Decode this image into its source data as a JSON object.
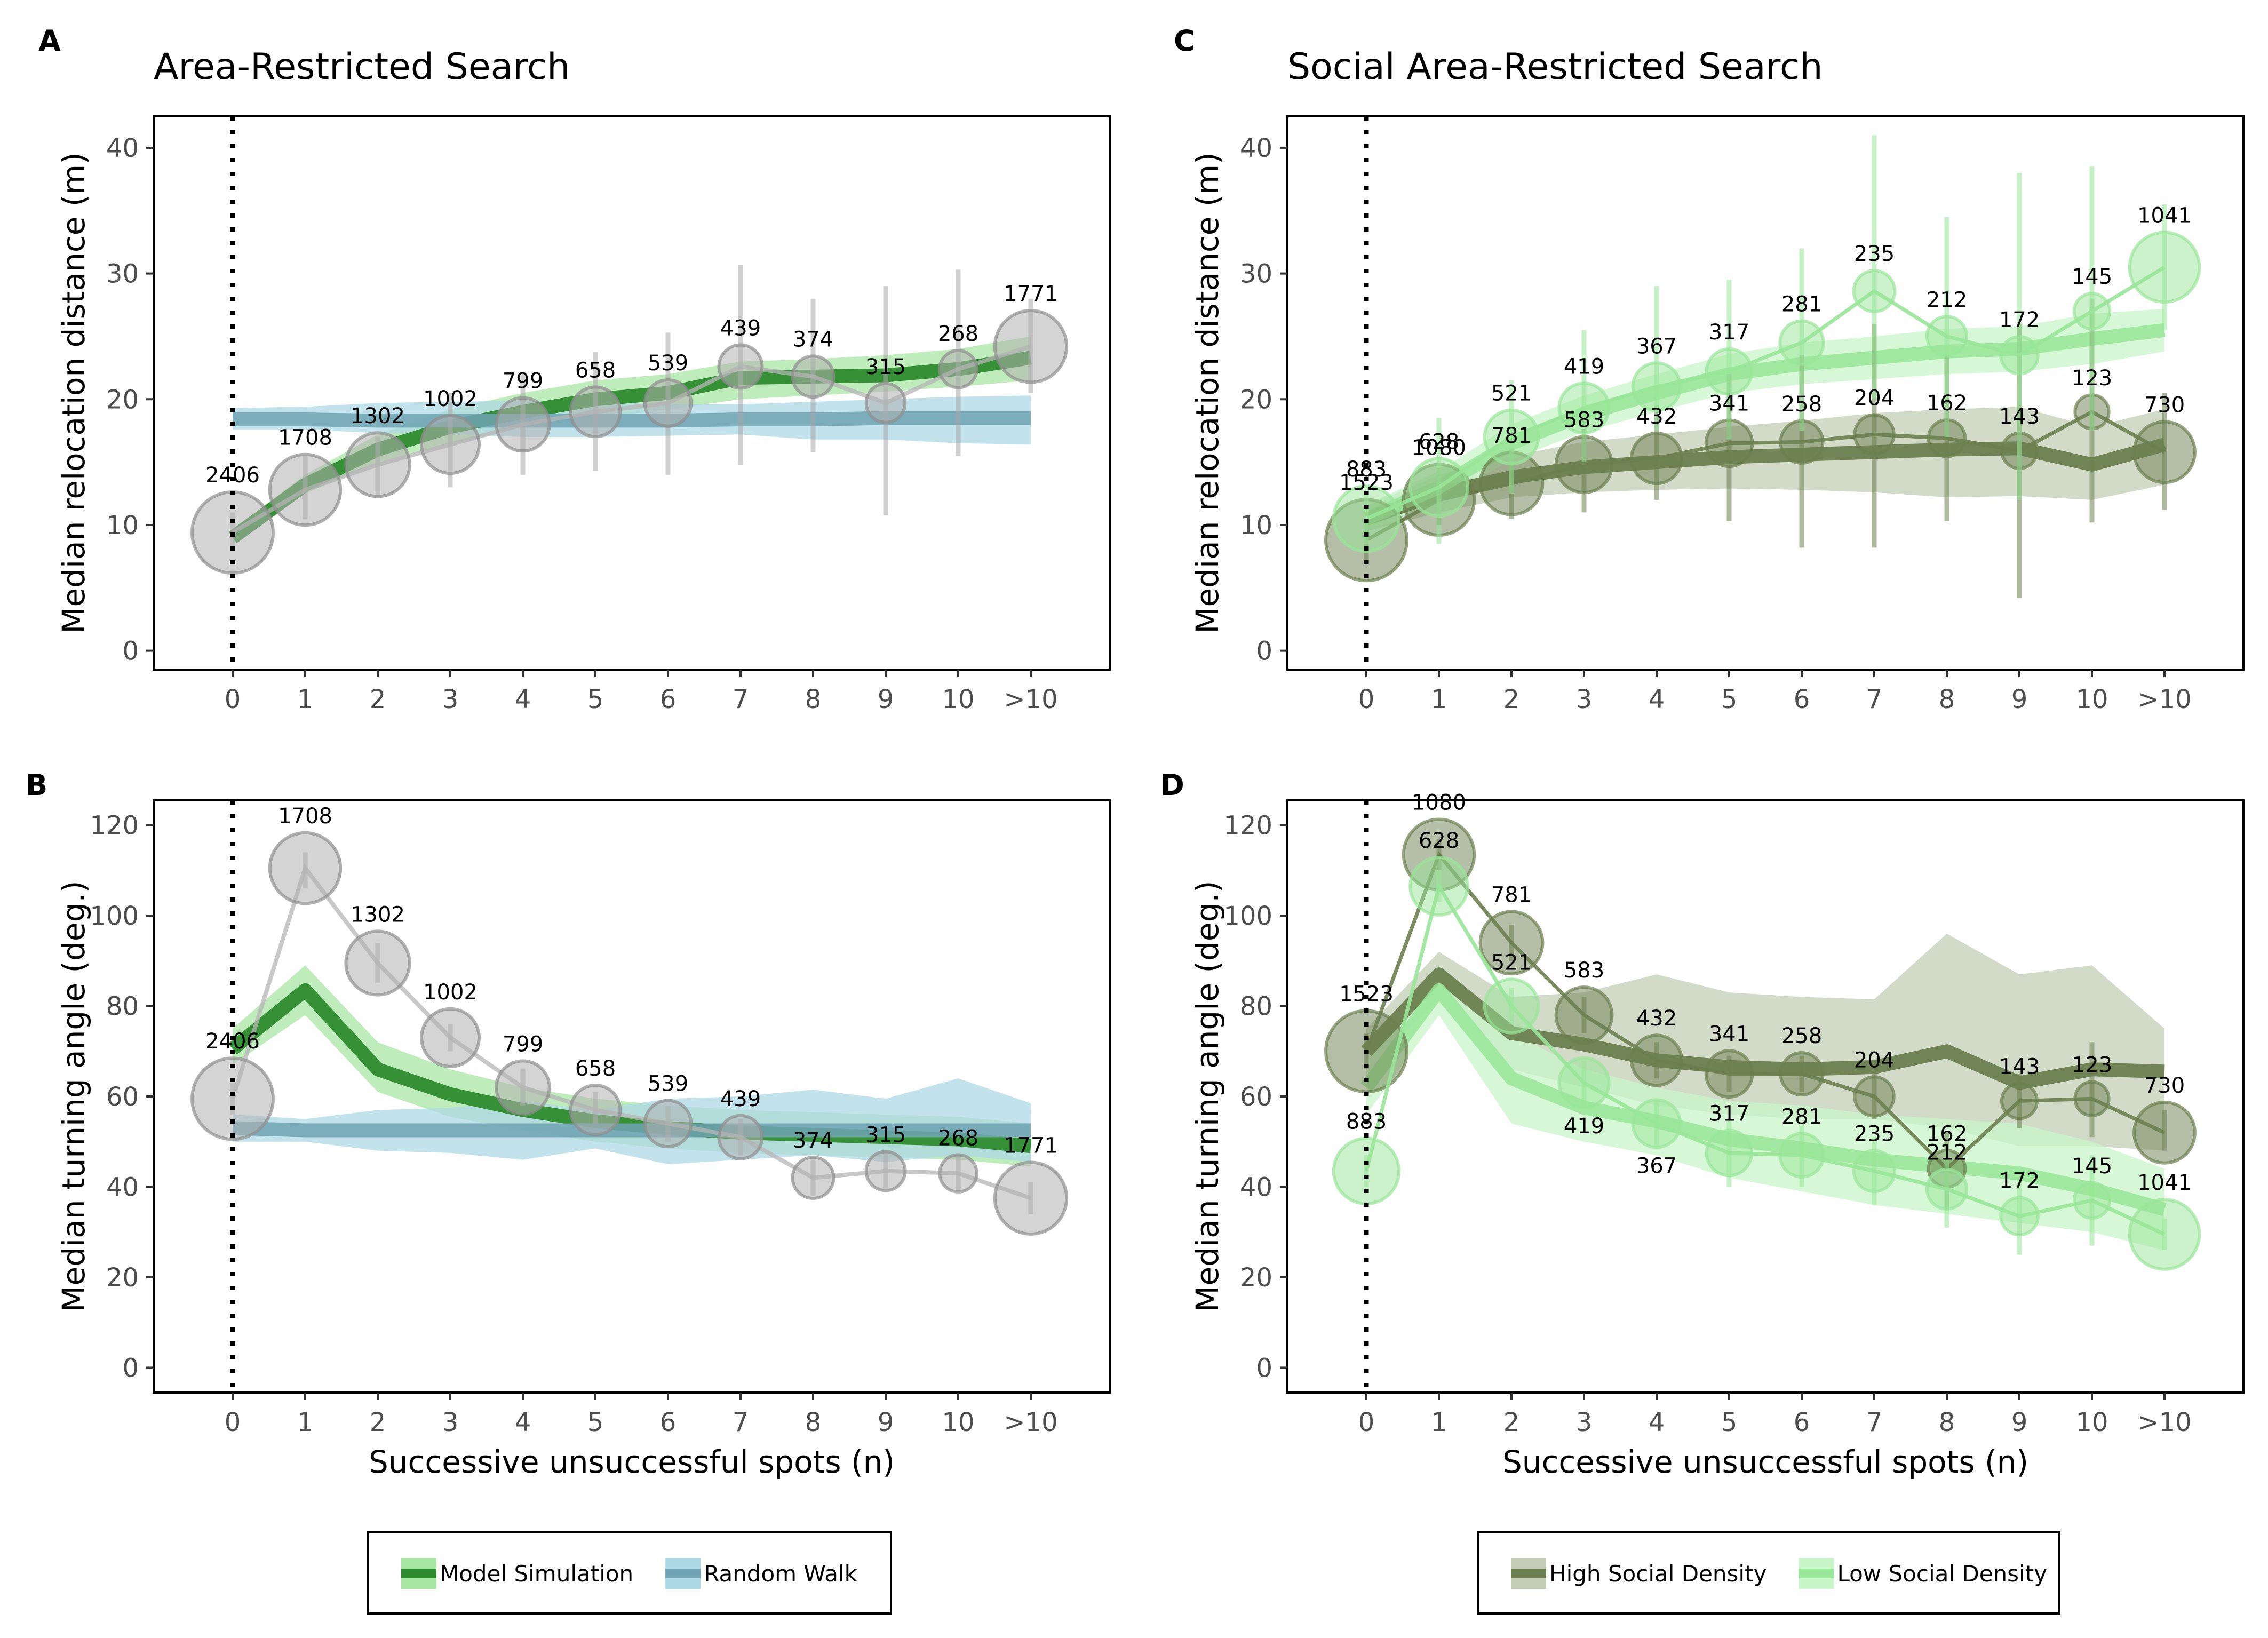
{
  "chart_data": [
    {
      "panel": "A",
      "title": "Area-Restricted Search",
      "type": "line",
      "ylabel": "Median relocation distance (m)",
      "xlabel": "",
      "ylim": [
        -1.5,
        42.5
      ],
      "yticks": [
        0,
        10,
        20,
        30,
        40
      ],
      "categories": [
        "0",
        "1",
        "2",
        "3",
        "4",
        "5",
        "6",
        "7",
        "8",
        "9",
        "10",
        ">10"
      ],
      "observed": {
        "values": [
          9.4,
          12.8,
          14.8,
          16.4,
          18.0,
          19.0,
          19.7,
          22.6,
          21.8,
          19.7,
          22.4,
          24.2
        ],
        "low": [
          8.0,
          10.5,
          12.2,
          13.0,
          14.0,
          14.3,
          14.0,
          14.8,
          15.8,
          10.8,
          15.5,
          20.5
        ],
        "high": [
          11.0,
          15.5,
          17.0,
          20.5,
          22.0,
          23.8,
          25.3,
          30.7,
          28.0,
          29.0,
          30.3,
          28.0
        ],
        "counts": [
          "2406",
          "1708",
          "1302",
          "1002",
          "799",
          "658",
          "539",
          "439",
          "374",
          "315",
          "268",
          "1771"
        ]
      },
      "series": [
        {
          "name": "Model Simulation",
          "values": [
            9.0,
            13.2,
            16.0,
            17.8,
            19.0,
            20.0,
            20.5,
            21.7,
            21.8,
            21.9,
            22.4,
            23.3
          ],
          "low": [
            8.5,
            12.5,
            15.0,
            16.5,
            17.8,
            18.5,
            19.2,
            20.0,
            20.3,
            20.6,
            21.0,
            21.5
          ],
          "high": [
            9.6,
            14.0,
            17.2,
            19.2,
            20.5,
            21.5,
            22.0,
            23.0,
            23.2,
            23.5,
            24.0,
            25.0
          ],
          "color": "#2e8b2e",
          "band": "#a8e6a3"
        },
        {
          "name": "Random Walk",
          "values": [
            18.4,
            18.4,
            18.3,
            18.3,
            18.3,
            18.3,
            18.3,
            18.4,
            18.4,
            18.5,
            18.5,
            18.5
          ],
          "low": [
            17.6,
            17.6,
            17.3,
            17.2,
            17.0,
            17.0,
            17.1,
            17.2,
            16.8,
            16.8,
            16.5,
            16.4
          ],
          "high": [
            19.3,
            19.4,
            19.7,
            19.8,
            19.9,
            19.8,
            19.6,
            19.6,
            19.8,
            20.0,
            20.2,
            20.3
          ],
          "color": "#6fa3b3",
          "band": "#add8e6"
        }
      ]
    },
    {
      "panel": "B",
      "title": "",
      "type": "line",
      "ylabel": "Median turning angle (deg.)",
      "xlabel": "Successive unsuccessful spots (n)",
      "ylim": [
        -5.5,
        125.5
      ],
      "yticks": [
        0,
        20,
        40,
        60,
        80,
        100,
        120
      ],
      "categories": [
        "0",
        "1",
        "2",
        "3",
        "4",
        "5",
        "6",
        "7",
        "8",
        "9",
        "10",
        ">10"
      ],
      "observed": {
        "values": [
          59.5,
          110.5,
          89.5,
          73.0,
          62.0,
          57.0,
          54.0,
          51.0,
          42.0,
          43.5,
          43.0,
          37.5
        ],
        "low": [
          56.0,
          106.0,
          85.0,
          70.0,
          58.0,
          54.0,
          50.0,
          47.0,
          38.0,
          39.5,
          39.0,
          34.0
        ],
        "high": [
          63.0,
          114.0,
          94.0,
          76.0,
          66.0,
          61.0,
          58.0,
          55.0,
          46.0,
          47.5,
          47.0,
          41.0
        ],
        "counts": [
          "2406",
          "1708",
          "1302",
          "1002",
          "799",
          "658",
          "539",
          "439",
          "374",
          "315",
          "268",
          "1771"
        ]
      },
      "series": [
        {
          "name": "Model Simulation",
          "values": [
            70.5,
            83.5,
            66.0,
            60.5,
            57.0,
            54.5,
            53.0,
            52.0,
            51.5,
            51.0,
            50.5,
            49.0
          ],
          "low": [
            67.0,
            78.0,
            61.0,
            55.5,
            52.5,
            50.0,
            48.5,
            47.5,
            47.0,
            46.5,
            46.0,
            44.5
          ],
          "high": [
            75.0,
            89.0,
            72.0,
            66.0,
            62.0,
            59.5,
            58.0,
            57.0,
            56.5,
            56.0,
            55.5,
            54.0
          ],
          "color": "#2e8b2e",
          "band": "#a8e6a3"
        },
        {
          "name": "Random Walk",
          "values": [
            53.0,
            52.5,
            52.5,
            52.5,
            52.5,
            52.5,
            52.5,
            52.5,
            52.5,
            52.5,
            52.5,
            52.5
          ],
          "low": [
            50.0,
            50.0,
            48.0,
            47.5,
            46.0,
            48.5,
            45.0,
            46.0,
            47.0,
            45.5,
            47.0,
            45.5
          ],
          "high": [
            56.0,
            55.0,
            57.0,
            57.5,
            59.0,
            57.0,
            59.5,
            60.0,
            61.5,
            59.5,
            64.0,
            58.5
          ],
          "color": "#6fa3b3",
          "band": "#add8e6"
        }
      ]
    },
    {
      "panel": "C",
      "title": "Social Area-Restricted Search",
      "type": "line",
      "ylabel": "Median relocation distance (m)",
      "xlabel": "",
      "ylim": [
        -1.5,
        42.5
      ],
      "yticks": [
        0,
        10,
        20,
        30,
        40
      ],
      "categories": [
        "0",
        "1",
        "2",
        "3",
        "4",
        "5",
        "6",
        "7",
        "8",
        "9",
        "10",
        ">10"
      ],
      "observed": [
        {
          "name": "High Social Density",
          "values": [
            8.8,
            12.0,
            13.3,
            14.8,
            15.3,
            16.5,
            16.6,
            17.2,
            16.9,
            15.9,
            19.0,
            15.8
          ],
          "low": [
            7.0,
            10.0,
            10.5,
            11.0,
            12.0,
            10.3,
            8.2,
            8.2,
            10.3,
            4.2,
            10.2,
            11.2
          ],
          "high": [
            10.5,
            14.5,
            16.0,
            18.5,
            19.5,
            22.0,
            23.5,
            26.0,
            23.5,
            26.0,
            28.0,
            20.5
          ],
          "counts": [
            "1523",
            "1080",
            "781",
            "583",
            "432",
            "341",
            "258",
            "204",
            "162",
            "143",
            "123",
            "730"
          ],
          "color": "#6b7f4f",
          "band": "#c3cdb5"
        },
        {
          "name": "Low Social Density",
          "values": [
            10.5,
            13.0,
            17.0,
            19.3,
            21.0,
            22.2,
            24.5,
            28.6,
            25.0,
            23.5,
            27.0,
            30.5
          ],
          "low": [
            8.5,
            8.5,
            12.5,
            15.0,
            17.5,
            16.8,
            17.5,
            20.0,
            17.0,
            12.0,
            17.5,
            25.5
          ],
          "high": [
            12.5,
            18.5,
            21.5,
            25.5,
            29.0,
            29.5,
            32.0,
            41.0,
            34.5,
            38.0,
            38.5,
            35.5
          ],
          "counts": [
            "883",
            "628",
            "521",
            "419",
            "367",
            "317",
            "281",
            "235",
            "212",
            "172",
            "145",
            "1041"
          ],
          "color": "#98e698",
          "band": "#c8f5c8"
        }
      ],
      "series": [
        {
          "name": "High Social Density",
          "values": [
            10.5,
            12.5,
            13.8,
            14.6,
            15.0,
            15.4,
            15.6,
            15.8,
            16.0,
            16.1,
            14.8,
            16.4
          ],
          "low": [
            9.5,
            11.0,
            12.2,
            12.6,
            12.8,
            12.9,
            12.8,
            12.6,
            12.2,
            12.3,
            12.0,
            13.2
          ],
          "high": [
            11.5,
            14.0,
            15.5,
            16.6,
            17.2,
            17.8,
            18.3,
            18.9,
            19.2,
            19.4,
            17.8,
            19.2
          ],
          "color": "#6b7f4f",
          "band": "#c3cdb5"
        },
        {
          "name": "Low Social Density",
          "values": [
            10.5,
            13.0,
            16.5,
            18.8,
            20.5,
            22.0,
            22.8,
            23.3,
            23.8,
            24.0,
            24.8,
            25.5
          ],
          "low": [
            9.5,
            11.8,
            15.2,
            17.4,
            19.0,
            20.5,
            21.2,
            21.6,
            22.0,
            22.2,
            22.8,
            23.8
          ],
          "high": [
            11.6,
            14.3,
            18.0,
            20.3,
            22.0,
            23.6,
            24.5,
            25.0,
            25.6,
            25.8,
            26.8,
            27.2
          ],
          "color": "#98e698",
          "band": "#c8f5c8"
        }
      ]
    },
    {
      "panel": "D",
      "title": "",
      "type": "line",
      "ylabel": "Median turning angle (deg.)",
      "xlabel": "Successive unsuccessful spots (n)",
      "ylim": [
        -5.5,
        125.5
      ],
      "yticks": [
        0,
        20,
        40,
        60,
        80,
        100,
        120
      ],
      "categories": [
        "0",
        "1",
        "2",
        "3",
        "4",
        "5",
        "6",
        "7",
        "8",
        "9",
        "10",
        ">10"
      ],
      "observed": [
        {
          "name": "High Social Density",
          "values": [
            70.0,
            113.5,
            94.0,
            78.0,
            68.0,
            65.0,
            65.0,
            60.0,
            44.0,
            59.0,
            59.5,
            52.0
          ],
          "low": [
            66.0,
            110.0,
            90.0,
            74.0,
            64.0,
            61.0,
            61.0,
            55.0,
            35.0,
            53.0,
            51.0,
            48.0
          ],
          "high": [
            74.0,
            117.0,
            98.0,
            82.0,
            72.0,
            69.0,
            69.0,
            65.0,
            52.0,
            65.0,
            72.0,
            57.0
          ],
          "counts": [
            "1523",
            "1080",
            "781",
            "583",
            "432",
            "341",
            "258",
            "204",
            "162",
            "143",
            "123",
            "730"
          ],
          "color": "#6b7f4f",
          "band": "#c3cdb5"
        },
        {
          "name": "Low Social Density",
          "values": [
            43.5,
            106.5,
            80.0,
            63.0,
            54.0,
            47.5,
            47.0,
            43.5,
            39.5,
            33.5,
            37.0,
            29.5
          ],
          "low": [
            40.0,
            103.0,
            76.0,
            58.0,
            49.0,
            40.0,
            40.0,
            36.0,
            31.0,
            25.0,
            27.0,
            26.0
          ],
          "high": [
            47.0,
            110.0,
            84.0,
            68.0,
            59.0,
            55.0,
            54.0,
            51.0,
            48.0,
            42.0,
            47.0,
            33.0
          ],
          "counts": [
            "883",
            "628",
            "521",
            "419",
            "367",
            "317",
            "281",
            "235",
            "212",
            "172",
            "145",
            "1041"
          ],
          "color": "#98e698",
          "band": "#c8f5c8"
        }
      ],
      "series": [
        {
          "name": "High Social Density",
          "values": [
            70.0,
            87.0,
            74.0,
            71.5,
            68.0,
            66.5,
            66.0,
            66.5,
            70.0,
            63.0,
            66.0,
            65.5
          ],
          "low": [
            65.0,
            82.0,
            66.0,
            62.0,
            58.0,
            56.0,
            55.0,
            55.0,
            53.0,
            49.0,
            49.0,
            48.0
          ],
          "high": [
            75.0,
            92.0,
            82.0,
            83.0,
            87.0,
            83.0,
            82.0,
            81.5,
            96.0,
            87.0,
            89.0,
            75.0
          ],
          "color": "#6b7f4f",
          "band": "#c3cdb5"
        },
        {
          "name": "Low Social Density",
          "values": [
            62.0,
            83.5,
            64.0,
            57.5,
            54.5,
            50.5,
            48.5,
            46.0,
            44.5,
            43.0,
            39.5,
            35.0
          ],
          "low": [
            56.0,
            78.0,
            54.0,
            50.0,
            47.0,
            42.0,
            39.0,
            36.0,
            34.0,
            32.0,
            30.0,
            26.0
          ],
          "high": [
            68.0,
            89.0,
            74.0,
            66.0,
            62.0,
            59.0,
            58.0,
            56.0,
            55.0,
            54.0,
            50.0,
            44.0
          ],
          "color": "#98e698",
          "band": "#c8f5c8"
        }
      ]
    }
  ],
  "legends": [
    {
      "items": [
        {
          "label": "Model Simulation",
          "line": "#2e8b2e",
          "fill": "#a8e6a3"
        },
        {
          "label": "Random Walk",
          "line": "#6fa3b3",
          "fill": "#add8e6"
        }
      ]
    },
    {
      "items": [
        {
          "label": "High Social Density",
          "line": "#6b7f4f",
          "fill": "#c3cdb5"
        },
        {
          "label": "Low Social Density",
          "line": "#98e698",
          "fill": "#c8f5c8"
        }
      ]
    }
  ]
}
